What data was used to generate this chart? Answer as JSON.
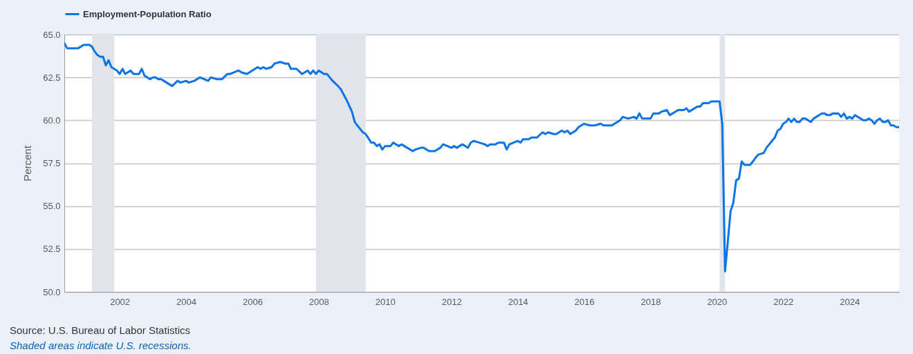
{
  "chart_data": {
    "type": "line",
    "ylabel": "Percent",
    "x": [
      "2000-05",
      "2000-06",
      "2000-10",
      "2000-12",
      "2001-02",
      "2001-03",
      "2001-04",
      "2001-05",
      "2001-06",
      "2001-07",
      "2001-08",
      "2001-09",
      "2001-10",
      "2001-12",
      "2002-01",
      "2002-02",
      "2002-03",
      "2002-05",
      "2002-06",
      "2002-08",
      "2002-09",
      "2002-10",
      "2002-12",
      "2003-01",
      "2003-02",
      "2003-03",
      "2003-04",
      "2003-05",
      "2003-07",
      "2003-08",
      "2003-10",
      "2003-11",
      "2004-01",
      "2004-02",
      "2004-04",
      "2004-06",
      "2004-09",
      "2004-10",
      "2004-12",
      "2005-02",
      "2005-04",
      "2005-05",
      "2005-08",
      "2005-09",
      "2005-11",
      "2006-03",
      "2006-04",
      "2006-05",
      "2006-06",
      "2006-08",
      "2006-09",
      "2006-11",
      "2007-01",
      "2007-02",
      "2007-03",
      "2007-05",
      "2007-07",
      "2007-09",
      "2007-10",
      "2007-11",
      "2007-12",
      "2008-01",
      "2008-03",
      "2008-04",
      "2008-05",
      "2008-06",
      "2008-08",
      "2008-09",
      "2008-11",
      "2009-01",
      "2009-02",
      "2009-03",
      "2009-05",
      "2009-06",
      "2009-08",
      "2009-09",
      "2009-10",
      "2009-11",
      "2009-12",
      "2010-01",
      "2010-03",
      "2010-04",
      "2010-06",
      "2010-07",
      "2010-09",
      "2010-11",
      "2010-12",
      "2011-02",
      "2011-03",
      "2011-05",
      "2011-07",
      "2011-09",
      "2011-10",
      "2012-01",
      "2012-02",
      "2012-03",
      "2012-05",
      "2012-07",
      "2012-08",
      "2012-09",
      "2012-11",
      "2013-01",
      "2013-02",
      "2013-03",
      "2013-05",
      "2013-06",
      "2013-08",
      "2013-09",
      "2013-10",
      "2014-01",
      "2014-02",
      "2014-03",
      "2014-05",
      "2014-06",
      "2014-08",
      "2014-10",
      "2014-11",
      "2014-12",
      "2015-02",
      "2015-03",
      "2015-05",
      "2015-06",
      "2015-07",
      "2015-08",
      "2015-10",
      "2015-11",
      "2016-01",
      "2016-03",
      "2016-05",
      "2016-07",
      "2016-08",
      "2016-11",
      "2017-01",
      "2017-02",
      "2017-03",
      "2017-05",
      "2017-07",
      "2017-08",
      "2017-09",
      "2017-10",
      "2018-01",
      "2018-02",
      "2018-04",
      "2018-05",
      "2018-07",
      "2018-08",
      "2018-11",
      "2019-01",
      "2019-02",
      "2019-03",
      "2019-06",
      "2019-07",
      "2019-08",
      "2019-10",
      "2019-11",
      "2020-01",
      "2020-02",
      "2020-03",
      "2020-04",
      "2020-06",
      "2020-07",
      "2020-08",
      "2020-09",
      "2020-10",
      "2020-11",
      "2021-01",
      "2021-02",
      "2021-03",
      "2021-04",
      "2021-06",
      "2021-07",
      "2021-10",
      "2021-11",
      "2021-12",
      "2022-01",
      "2022-02",
      "2022-03",
      "2022-04",
      "2022-05",
      "2022-06",
      "2022-07",
      "2022-08",
      "2022-09",
      "2022-11",
      "2022-12",
      "2023-02",
      "2023-03",
      "2023-04",
      "2023-05",
      "2023-06",
      "2023-07",
      "2023-09",
      "2023-10",
      "2023-11",
      "2023-12",
      "2024-01",
      "2024-02",
      "2024-03",
      "2024-04",
      "2024-06",
      "2024-07",
      "2024-08",
      "2024-09",
      "2024-10",
      "2024-11",
      "2024-12",
      "2025-01",
      "2025-02",
      "2025-03",
      "2025-04",
      "2025-05",
      "2025-06",
      "2025-07"
    ],
    "series": [
      {
        "name": "Employment-Population Ratio",
        "color": "#0a74e6",
        "values": [
          64.5,
          64.2,
          64.2,
          64.4,
          64.4,
          64.3,
          64.0,
          63.8,
          63.7,
          63.7,
          63.2,
          63.5,
          63.1,
          62.9,
          62.7,
          63.0,
          62.7,
          62.9,
          62.7,
          62.7,
          63.0,
          62.6,
          62.4,
          62.5,
          62.5,
          62.4,
          62.4,
          62.3,
          62.1,
          62.0,
          62.3,
          62.2,
          62.3,
          62.2,
          62.3,
          62.5,
          62.3,
          62.5,
          62.4,
          62.4,
          62.7,
          62.7,
          62.9,
          62.8,
          62.7,
          63.1,
          63.0,
          63.1,
          63.0,
          63.1,
          63.3,
          63.4,
          63.3,
          63.3,
          63.0,
          63.0,
          62.7,
          62.9,
          62.7,
          62.9,
          62.7,
          62.9,
          62.7,
          62.7,
          62.5,
          62.3,
          62.0,
          61.8,
          61.2,
          60.5,
          59.9,
          59.7,
          59.3,
          59.2,
          58.7,
          58.7,
          58.5,
          58.6,
          58.3,
          58.5,
          58.5,
          58.7,
          58.5,
          58.6,
          58.4,
          58.2,
          58.3,
          58.4,
          58.4,
          58.2,
          58.2,
          58.4,
          58.6,
          58.4,
          58.5,
          58.4,
          58.6,
          58.4,
          58.7,
          58.8,
          58.7,
          58.6,
          58.5,
          58.6,
          58.6,
          58.7,
          58.7,
          58.3,
          58.6,
          58.8,
          58.7,
          58.9,
          58.9,
          59.0,
          59.0,
          59.3,
          59.2,
          59.3,
          59.2,
          59.2,
          59.4,
          59.3,
          59.4,
          59.2,
          59.4,
          59.6,
          59.8,
          59.7,
          59.7,
          59.8,
          59.7,
          59.7,
          59.9,
          60.0,
          60.2,
          60.1,
          60.2,
          60.1,
          60.4,
          60.1,
          60.1,
          60.4,
          60.4,
          60.5,
          60.6,
          60.3,
          60.6,
          60.6,
          60.7,
          60.5,
          60.8,
          60.8,
          61.0,
          61.0,
          61.1,
          61.1,
          61.1,
          59.8,
          51.2,
          54.7,
          55.2,
          56.5,
          56.6,
          57.6,
          57.4,
          57.4,
          57.6,
          57.8,
          58.0,
          58.1,
          58.4,
          59.0,
          59.4,
          59.5,
          59.8,
          59.9,
          60.1,
          59.9,
          60.1,
          59.9,
          59.9,
          60.1,
          60.1,
          59.9,
          60.1,
          60.3,
          60.4,
          60.4,
          60.3,
          60.3,
          60.4,
          60.4,
          60.2,
          60.4,
          60.1,
          60.2,
          60.1,
          60.3,
          60.2,
          60.0,
          60.0,
          60.1,
          60.0,
          59.8,
          60.0,
          60.1,
          59.9,
          59.9,
          60.0,
          59.7,
          59.7,
          59.6,
          59.6
        ]
      }
    ],
    "xlim": [
      "2000-05",
      "2025-07"
    ],
    "xticks": [
      "2002",
      "2004",
      "2006",
      "2008",
      "2010",
      "2012",
      "2014",
      "2016",
      "2018",
      "2020",
      "2022",
      "2024"
    ],
    "ylim": [
      50,
      65
    ],
    "yticks": [
      {
        "value": 50,
        "label": "50.0"
      },
      {
        "value": 52.5,
        "label": "52.5"
      },
      {
        "value": 55,
        "label": "55.0"
      },
      {
        "value": 57.5,
        "label": "57.5"
      },
      {
        "value": 60,
        "label": "60.0"
      },
      {
        "value": 62.5,
        "label": "62.5"
      },
      {
        "value": 65,
        "label": "65.0"
      }
    ],
    "bands": [
      {
        "axis": "x",
        "from": "2001-03",
        "to": "2001-11",
        "color": "#e1e5ea"
      },
      {
        "axis": "x",
        "from": "2007-12",
        "to": "2009-06",
        "color": "#e1e5ea"
      },
      {
        "axis": "x",
        "from": "2020-02",
        "to": "2020-04",
        "color": "#e1e5ea"
      }
    ],
    "grid": "y",
    "legend": "top left",
    "line_style": "solid",
    "annotations": [
      "Source: U.S. Bureau of Labor Statistics",
      "Shaded areas indicate U.S. recessions."
    ]
  }
}
